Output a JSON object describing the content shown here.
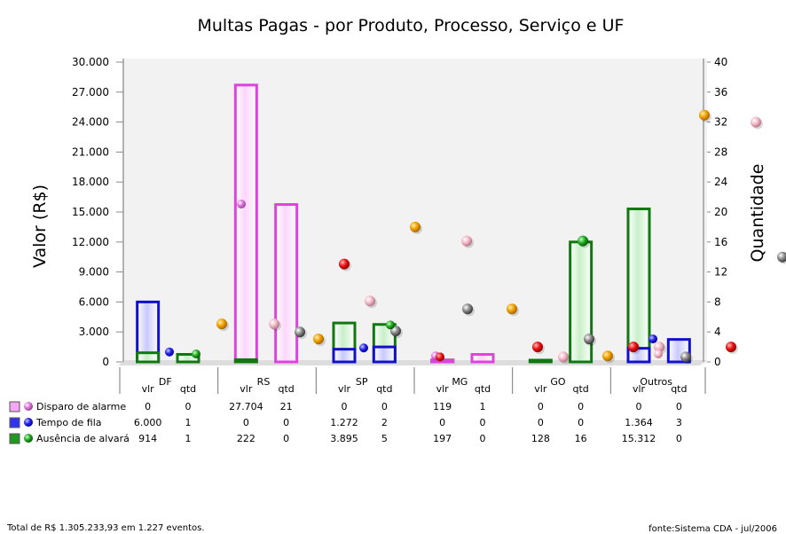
{
  "chart_data": {
    "type": "bar",
    "title": "Multas Pagas - por Produto, Processo, Serviço e UF",
    "ylabel": "Valor (R$)",
    "y2label": "Quantidade",
    "ylim": [
      0,
      30000
    ],
    "y2lim": [
      0,
      40
    ],
    "yticks": [
      "0",
      "3.000",
      "6.000",
      "9.000",
      "12.000",
      "15.000",
      "18.000",
      "21.000",
      "24.000",
      "27.000",
      "30.000"
    ],
    "y2ticks": [
      "0",
      "4",
      "8",
      "12",
      "16",
      "20",
      "24",
      "28",
      "32",
      "36",
      "40"
    ],
    "groups": [
      "DF",
      "RS",
      "SP",
      "MG",
      "GO",
      "Outros"
    ],
    "subgroups": [
      "vlr",
      "qtd"
    ],
    "series": [
      {
        "name": "Disparo de alarme",
        "color": "#ee88ee",
        "vlr": [
          0,
          27704,
          0,
          119,
          0,
          0
        ],
        "qtd": [
          0,
          21,
          0,
          1,
          0,
          0
        ],
        "table": [
          "0",
          "0",
          "27.704",
          "21",
          "0",
          "0",
          "119",
          "1",
          "0",
          "0",
          "0",
          "0"
        ]
      },
      {
        "name": "Tempo de fila",
        "color": "#2222dd",
        "vlr": [
          6000,
          0,
          1272,
          0,
          0,
          1364
        ],
        "qtd": [
          1,
          0,
          2,
          0,
          0,
          3
        ],
        "table": [
          "6.000",
          "1",
          "0",
          "0",
          "1.272",
          "2",
          "0",
          "0",
          "0",
          "0",
          "1.364",
          "3"
        ]
      },
      {
        "name": "Ausência de alvará",
        "color": "#228822",
        "vlr": [
          914,
          222,
          3895,
          197,
          128,
          15312
        ],
        "qtd": [
          1,
          0,
          5,
          0,
          16,
          0
        ],
        "table": [
          "914",
          "1",
          "222",
          "0",
          "3.895",
          "5",
          "197",
          "0",
          "128",
          "16",
          "15.312",
          "0"
        ]
      }
    ],
    "markers": [
      {
        "color": "orange",
        "x": 250,
        "v": 3800
      },
      {
        "color": "pink",
        "x": 309,
        "v": 3800
      },
      {
        "color": "gray",
        "x": 338,
        "v": 3000
      },
      {
        "color": "orange",
        "x": 359,
        "v": 2300
      },
      {
        "color": "red",
        "x": 388,
        "v": 9800
      },
      {
        "color": "pink",
        "x": 417,
        "v": 6100
      },
      {
        "color": "gray",
        "x": 446,
        "v": 3100
      },
      {
        "color": "orange",
        "x": 468,
        "v": 13500
      },
      {
        "color": "pink",
        "x": 526,
        "v": 12100
      },
      {
        "color": "gray",
        "x": 527,
        "v": 5300
      },
      {
        "color": "orange",
        "x": 577,
        "v": 5300
      },
      {
        "color": "red",
        "x": 606,
        "v": 1500
      },
      {
        "color": "pink",
        "x": 635,
        "v": 500
      },
      {
        "color": "gray",
        "x": 664,
        "v": 2300
      },
      {
        "color": "green",
        "x": 657,
        "v": 12100
      },
      {
        "color": "orange",
        "x": 685,
        "v": 600
      },
      {
        "color": "red",
        "x": 714,
        "v": 1500
      },
      {
        "color": "pink",
        "x": 743,
        "v": 1500
      },
      {
        "color": "gray",
        "x": 773,
        "v": 500
      },
      {
        "color": "orange",
        "x": 794,
        "v": 24700
      },
      {
        "color": "red",
        "x": 824,
        "v": 1500
      },
      {
        "color": "pink",
        "x": 852,
        "v": 24000
      },
      {
        "color": "gray",
        "x": 882,
        "v": 10500
      }
    ]
  },
  "footer": {
    "total": "Total de R$ 1.305.233,93 em 1.227 eventos.",
    "source": "fonte:Sistema CDA - jul/2006"
  }
}
